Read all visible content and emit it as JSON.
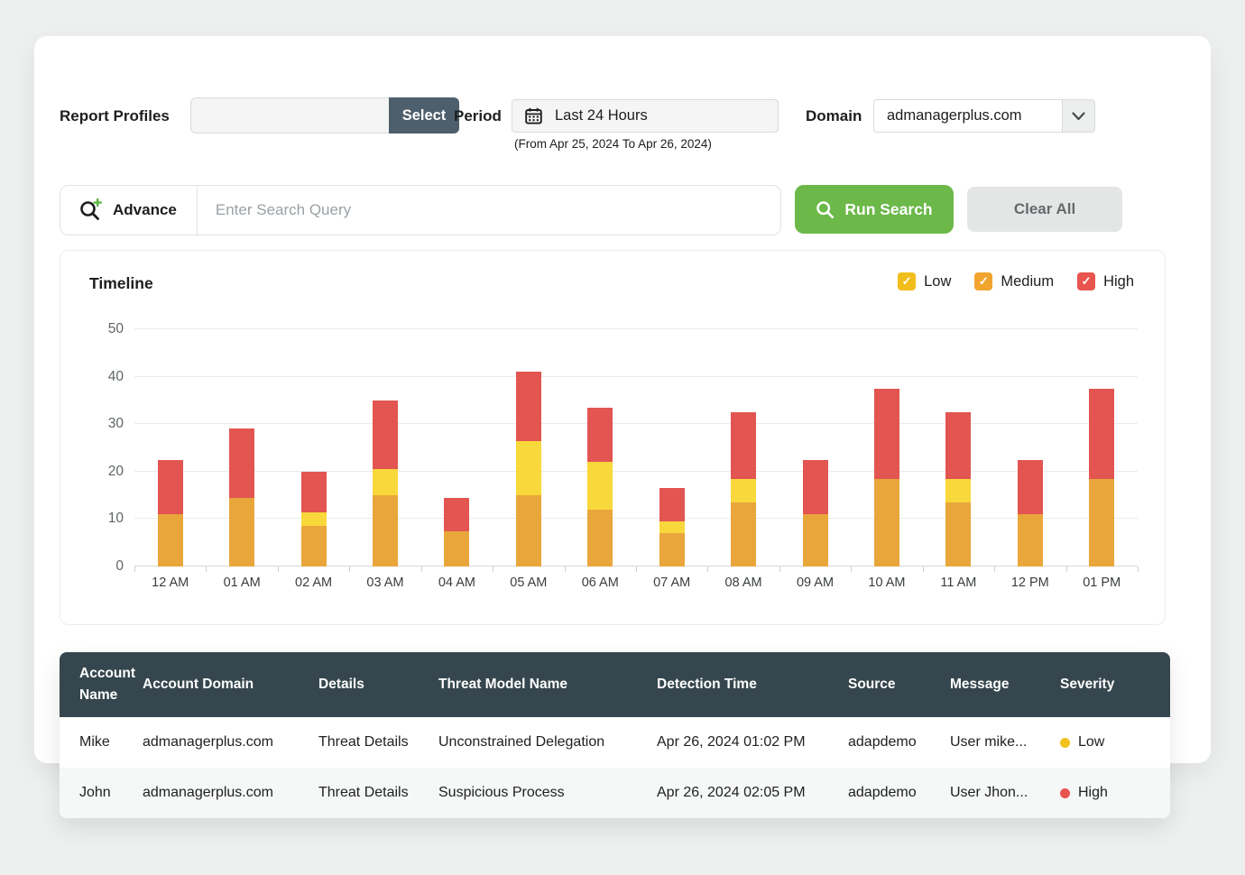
{
  "toolbar": {
    "report_profiles_label": "Report Profiles",
    "select_button": "Select",
    "period_label": "Period",
    "period_value": "Last 24 Hours",
    "period_range": "(From Apr 25, 2024 To Apr 26, 2024)",
    "domain_label": "Domain",
    "domain_value": "admanagerplus.com"
  },
  "search": {
    "advance_label": "Advance",
    "placeholder": "Enter Search Query",
    "run_search_label": "Run Search",
    "clear_all_label": "Clear All"
  },
  "timeline": {
    "title": "Timeline",
    "legend": [
      {
        "label": "Low",
        "swatch_color": "#F2BE1B"
      },
      {
        "label": "Medium",
        "swatch_color": "#F2A52E"
      },
      {
        "label": "High",
        "swatch_color": "#E8544E"
      }
    ]
  },
  "chart_data": {
    "type": "bar",
    "stacked": true,
    "title": "Timeline",
    "categories": [
      "12 AM",
      "01 AM",
      "02 AM",
      "03 AM",
      "04 AM",
      "05 AM",
      "06 AM",
      "07 AM",
      "08 AM",
      "09 AM",
      "10 AM",
      "11 AM",
      "12 PM",
      "01 PM"
    ],
    "series": [
      {
        "name": "Low",
        "color": "#E9A63B",
        "values": [
          11,
          14.5,
          8.5,
          15,
          7.5,
          15,
          12,
          7,
          13.5,
          11,
          18.5,
          13.5,
          11,
          18.5
        ]
      },
      {
        "name": "Medium",
        "color": "#F9D83C",
        "values": [
          0,
          0,
          3,
          5.5,
          0,
          11.5,
          10,
          2.5,
          5,
          0,
          0,
          5,
          0,
          0
        ]
      },
      {
        "name": "High",
        "color": "#E25551",
        "values": [
          11.5,
          14.5,
          8.5,
          14.5,
          7,
          14.5,
          11.5,
          7,
          14,
          11.5,
          19,
          14,
          11.5,
          19
        ]
      }
    ],
    "xlabel": "",
    "ylabel": "",
    "ylim": [
      0,
      50
    ],
    "yticks": [
      0,
      10,
      20,
      30,
      40,
      50
    ],
    "grid": true,
    "legend_position": "top-right"
  },
  "table": {
    "headers": [
      "Account Name",
      "Account Domain",
      "Details",
      "Threat Model Name",
      "Detection Time",
      "Source",
      "Message",
      "Severity"
    ],
    "rows": [
      {
        "account_name": "Mike",
        "account_domain": "admanagerplus.com",
        "details": "Threat Details",
        "threat_model": "Unconstrained Delegation",
        "detection_time": "Apr 26, 2024 01:02 PM",
        "source": "adapdemo",
        "message": "User mike...",
        "severity": "Low",
        "severity_color": "#F2C11D"
      },
      {
        "account_name": "John",
        "account_domain": "admanagerplus.com",
        "details": "Threat Details",
        "threat_model": "Suspicious Process",
        "detection_time": "Apr 26, 2024 02:05 PM",
        "source": "adapdemo",
        "message": "User Jhon...",
        "severity": "High",
        "severity_color": "#E8544E"
      }
    ]
  }
}
